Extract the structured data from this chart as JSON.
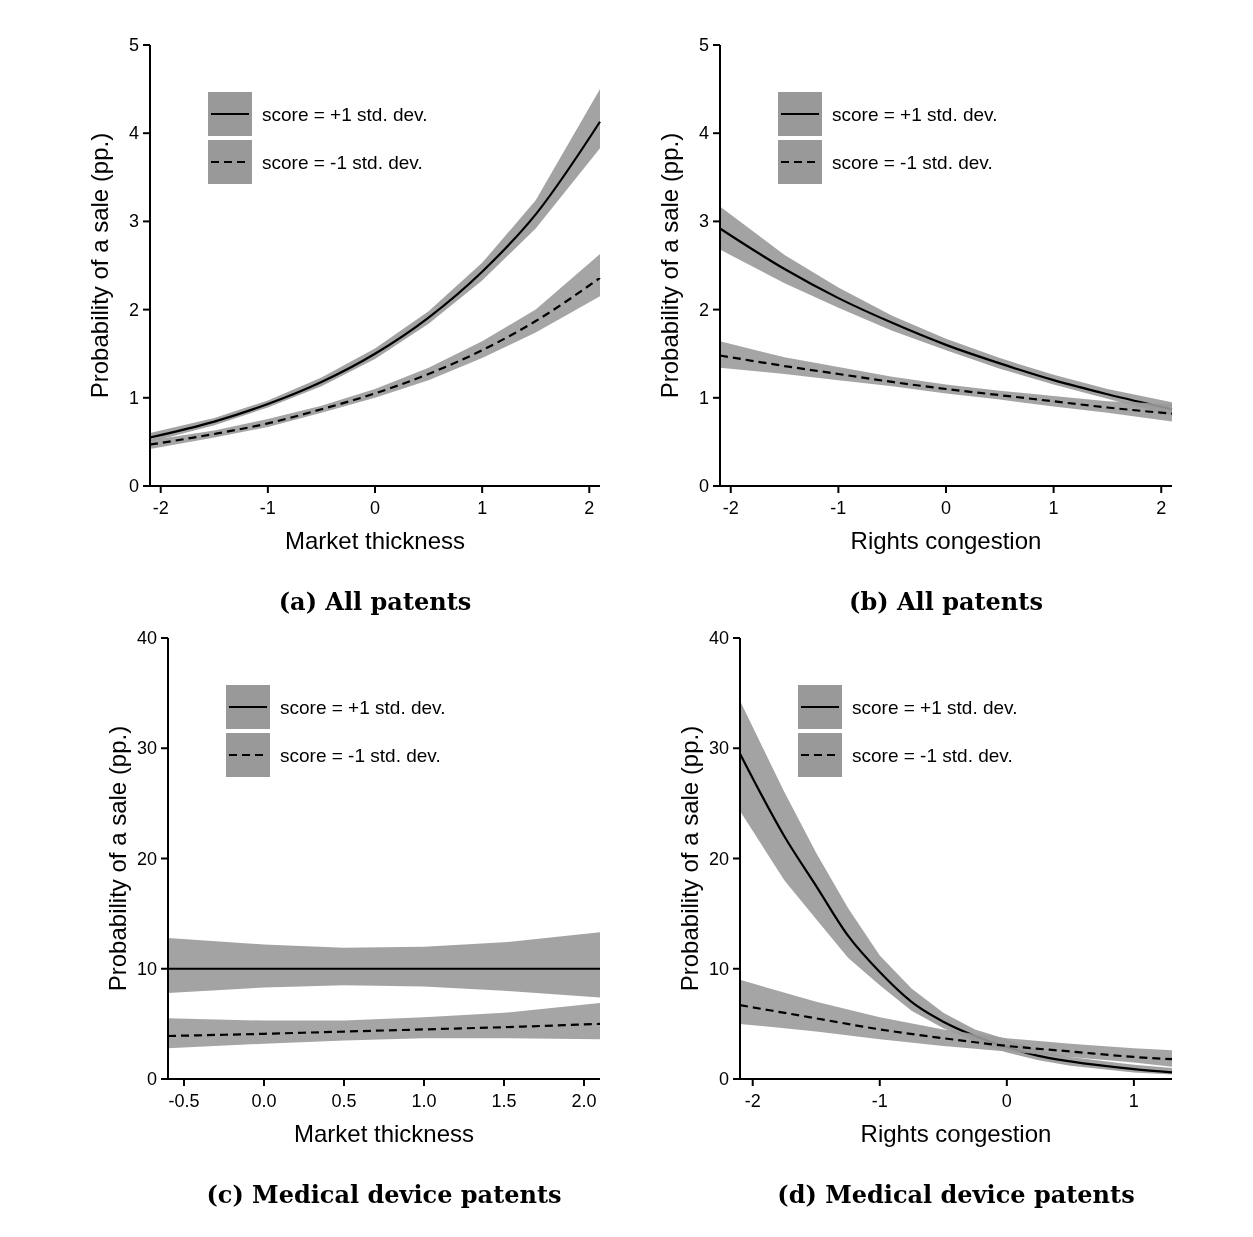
{
  "chart_data": [
    {
      "type": "line",
      "title": "(a) All patents",
      "xlabel": "Market thickness",
      "ylabel": "Probability of a sale (pp.)",
      "x": [
        -2.1,
        -1.5,
        -1,
        -0.5,
        0,
        0.5,
        1,
        1.5,
        2.1
      ],
      "xlim": [
        -2.1,
        2.1
      ],
      "xticks": [
        -2,
        -1,
        0,
        1,
        2
      ],
      "ylim": [
        0,
        5
      ],
      "yticks": [
        0,
        1,
        2,
        3,
        4,
        5
      ],
      "legend": "top left",
      "grid": false,
      "series": [
        {
          "name": "score = +1 std. dev.",
          "color": "#000000",
          "line_style": "solid",
          "values": [
            0.55,
            0.73,
            0.93,
            1.18,
            1.5,
            1.91,
            2.43,
            3.08,
            4.13
          ],
          "lower": [
            0.5,
            0.69,
            0.89,
            1.13,
            1.44,
            1.84,
            2.33,
            2.92,
            3.83
          ],
          "upper": [
            0.6,
            0.77,
            0.97,
            1.23,
            1.56,
            1.98,
            2.53,
            3.24,
            4.5
          ]
        },
        {
          "name": "score = -1 std. dev.",
          "color": "#000000",
          "line_style": "dashed",
          "values": [
            0.47,
            0.59,
            0.71,
            0.87,
            1.05,
            1.27,
            1.54,
            1.87,
            2.36
          ],
          "lower": [
            0.42,
            0.55,
            0.67,
            0.83,
            1.0,
            1.2,
            1.45,
            1.74,
            2.15
          ],
          "upper": [
            0.52,
            0.63,
            0.76,
            0.91,
            1.1,
            1.34,
            1.64,
            2.0,
            2.63
          ]
        }
      ]
    },
    {
      "type": "line",
      "title": "(b) All patents",
      "xlabel": "Rights congestion",
      "ylabel": "Probability of a sale (pp.)",
      "x": [
        -2.1,
        -1.5,
        -1,
        -0.5,
        0,
        0.5,
        1,
        1.5,
        2.1
      ],
      "xlim": [
        -2.1,
        2.1
      ],
      "xticks": [
        -2,
        -1,
        0,
        1,
        2
      ],
      "ylim": [
        0,
        5
      ],
      "yticks": [
        0,
        1,
        2,
        3,
        4,
        5
      ],
      "legend": "top left",
      "grid": false,
      "series": [
        {
          "name": "score = +1 std. dev.",
          "color": "#000000",
          "line_style": "solid",
          "values": [
            2.92,
            2.46,
            2.13,
            1.85,
            1.6,
            1.39,
            1.2,
            1.04,
            0.87
          ],
          "lower": [
            2.68,
            2.3,
            2.02,
            1.76,
            1.54,
            1.33,
            1.15,
            0.99,
            0.8
          ],
          "upper": [
            3.17,
            2.62,
            2.25,
            1.93,
            1.67,
            1.45,
            1.26,
            1.1,
            0.95
          ]
        },
        {
          "name": "score = -1 std. dev.",
          "color": "#000000",
          "line_style": "dashed",
          "values": [
            1.48,
            1.36,
            1.27,
            1.18,
            1.1,
            1.03,
            0.96,
            0.89,
            0.82
          ],
          "lower": [
            1.34,
            1.27,
            1.2,
            1.13,
            1.05,
            0.98,
            0.9,
            0.83,
            0.73
          ],
          "upper": [
            1.64,
            1.46,
            1.35,
            1.24,
            1.15,
            1.08,
            1.02,
            0.96,
            0.93
          ]
        }
      ]
    },
    {
      "type": "line",
      "title": "(c) Medical device patents",
      "xlabel": "Market thickness",
      "ylabel": "Probability of a sale (pp.)",
      "x": [
        -0.6,
        0,
        0.5,
        1,
        1.5,
        2.1
      ],
      "xlim": [
        -0.6,
        2.1
      ],
      "xticks": [
        -0.5,
        {
          "value": 0,
          "label": "0.0"
        },
        0.5,
        {
          "value": 1,
          "label": "1.0"
        },
        1.5,
        {
          "value": 2,
          "label": "2.0"
        }
      ],
      "ylim": [
        0,
        40
      ],
      "yticks": [
        0,
        10,
        20,
        30,
        40
      ],
      "legend": "top left",
      "grid": false,
      "series": [
        {
          "name": "score = +1 std. dev.",
          "color": "#000000",
          "line_style": "solid",
          "values": [
            10,
            10,
            10,
            10,
            10,
            10
          ],
          "lower": [
            7.8,
            8.3,
            8.5,
            8.4,
            8.0,
            7.4
          ],
          "upper": [
            12.8,
            12.2,
            11.9,
            12.0,
            12.4,
            13.3
          ]
        },
        {
          "name": "score = -1 std. dev.",
          "color": "#000000",
          "line_style": "dashed",
          "values": [
            3.9,
            4.1,
            4.3,
            4.5,
            4.7,
            5.0
          ],
          "lower": [
            2.8,
            3.2,
            3.5,
            3.7,
            3.7,
            3.6
          ],
          "upper": [
            5.5,
            5.3,
            5.3,
            5.6,
            6.0,
            6.9
          ]
        }
      ]
    },
    {
      "type": "line",
      "title": "(d) Medical device patents",
      "xlabel": "Rights congestion",
      "ylabel": "Probability of a sale (pp.)",
      "xlim": [
        -2.1,
        1.3
      ],
      "xticks": [
        -2,
        -1,
        0,
        1
      ],
      "ylim": [
        0,
        40
      ],
      "yticks": [
        0,
        10,
        20,
        30,
        40
      ],
      "legend": "top left",
      "grid": false,
      "series": [
        {
          "name": "score = +1 std. dev.",
          "color": "#000000",
          "line_style": "solid",
          "x": [
            -2.1,
            -1.75,
            -1.5,
            -1.25,
            -1,
            -0.75,
            -0.5,
            -0.25,
            0,
            0.25,
            0.5,
            1,
            1.3
          ],
          "values": [
            29.5,
            22,
            17.5,
            13,
            9.7,
            7.0,
            5.2,
            3.9,
            2.9,
            2.1,
            1.6,
            0.9,
            0.6
          ],
          "lower": [
            24.3,
            18,
            14.5,
            11,
            8.5,
            6.2,
            4.6,
            3.4,
            2.4,
            1.7,
            1.2,
            0.6,
            0.4
          ],
          "upper": [
            34.3,
            26,
            20.5,
            15.5,
            11.2,
            8.2,
            6.0,
            4.5,
            3.6,
            2.6,
            2.0,
            1.3,
            1.0
          ]
        },
        {
          "name": "score = -1 std. dev.",
          "color": "#000000",
          "line_style": "dashed",
          "x": [
            -2.1,
            -1.5,
            -1,
            -0.5,
            0,
            0.5,
            1,
            1.3
          ],
          "values": [
            6.7,
            5.5,
            4.5,
            3.7,
            3.0,
            2.5,
            2.0,
            1.8
          ],
          "lower": [
            5.0,
            4.3,
            3.6,
            3.0,
            2.5,
            2.0,
            1.5,
            1.1
          ],
          "upper": [
            9.0,
            7.0,
            5.6,
            4.5,
            3.7,
            3.2,
            2.8,
            2.6
          ]
        }
      ]
    }
  ]
}
